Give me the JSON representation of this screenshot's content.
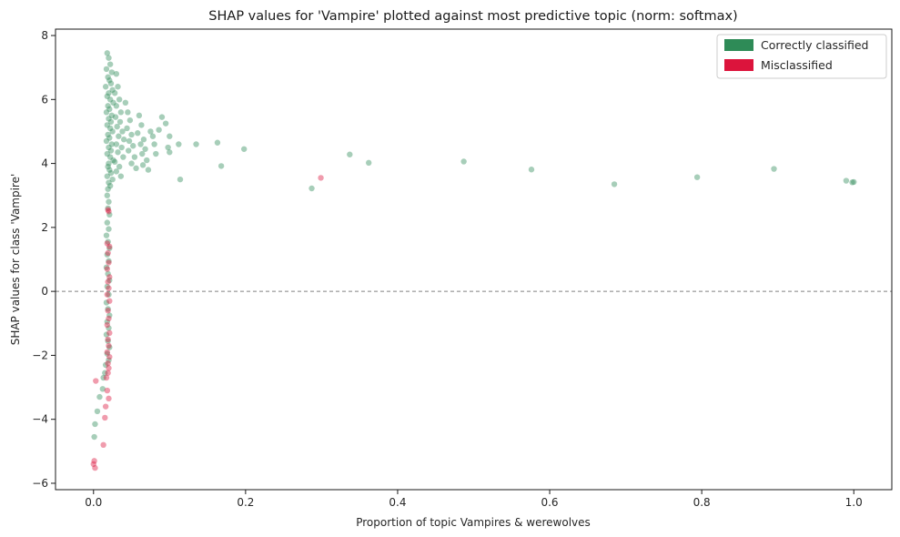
{
  "chart_data": {
    "type": "scatter",
    "title": "SHAP values for 'Vampire' plotted against most predictive topic (norm: softmax)",
    "xlabel": "Proportion of topic Vampires & werewolves",
    "ylabel": "SHAP values for class 'Vampire'",
    "xlim": [
      -0.05,
      1.05
    ],
    "ylim": [
      -6.2,
      8.2
    ],
    "xticks": [
      0.0,
      0.2,
      0.4,
      0.6,
      0.8,
      1.0
    ],
    "xtick_labels": [
      "0.0",
      "0.2",
      "0.4",
      "0.6",
      "0.8",
      "1.0"
    ],
    "yticks": [
      -6,
      -4,
      -2,
      0,
      2,
      4,
      6,
      8
    ],
    "ytick_labels": [
      "−6",
      "−4",
      "−2",
      "0",
      "2",
      "4",
      "6",
      "8"
    ],
    "reference_line": {
      "y": 0,
      "style": "dashed",
      "color": "#808080"
    },
    "grid": false,
    "legend_position": "top-right",
    "series": [
      {
        "name": "Correctly classified",
        "color": "#2e8b57",
        "points": [
          [
            0.018,
            7.45
          ],
          [
            0.02,
            7.3
          ],
          [
            0.022,
            7.1
          ],
          [
            0.017,
            6.95
          ],
          [
            0.024,
            6.85
          ],
          [
            0.019,
            6.7
          ],
          [
            0.021,
            6.6
          ],
          [
            0.023,
            6.5
          ],
          [
            0.016,
            6.4
          ],
          [
            0.025,
            6.3
          ],
          [
            0.02,
            6.2
          ],
          [
            0.018,
            6.1
          ],
          [
            0.022,
            6.0
          ],
          [
            0.026,
            5.9
          ],
          [
            0.019,
            5.8
          ],
          [
            0.021,
            5.7
          ],
          [
            0.017,
            5.6
          ],
          [
            0.024,
            5.5
          ],
          [
            0.02,
            5.4
          ],
          [
            0.023,
            5.3
          ],
          [
            0.018,
            5.2
          ],
          [
            0.022,
            5.1
          ],
          [
            0.025,
            5.0
          ],
          [
            0.019,
            4.9
          ],
          [
            0.021,
            4.8
          ],
          [
            0.017,
            4.7
          ],
          [
            0.024,
            4.6
          ],
          [
            0.02,
            4.5
          ],
          [
            0.023,
            4.4
          ],
          [
            0.018,
            4.3
          ],
          [
            0.022,
            4.2
          ],
          [
            0.026,
            4.1
          ],
          [
            0.02,
            4.0
          ],
          [
            0.019,
            3.9
          ],
          [
            0.021,
            3.8
          ],
          [
            0.023,
            3.7
          ],
          [
            0.018,
            3.6
          ],
          [
            0.025,
            3.5
          ],
          [
            0.02,
            3.4
          ],
          [
            0.022,
            3.3
          ],
          [
            0.019,
            3.2
          ],
          [
            0.03,
            6.8
          ],
          [
            0.032,
            6.4
          ],
          [
            0.028,
            6.2
          ],
          [
            0.034,
            6.0
          ],
          [
            0.03,
            5.8
          ],
          [
            0.036,
            5.6
          ],
          [
            0.029,
            5.45
          ],
          [
            0.035,
            5.3
          ],
          [
            0.031,
            5.15
          ],
          [
            0.038,
            5.0
          ],
          [
            0.033,
            4.85
          ],
          [
            0.04,
            4.75
          ],
          [
            0.03,
            4.6
          ],
          [
            0.037,
            4.5
          ],
          [
            0.032,
            4.35
          ],
          [
            0.039,
            4.2
          ],
          [
            0.028,
            4.05
          ],
          [
            0.034,
            3.9
          ],
          [
            0.03,
            3.75
          ],
          [
            0.036,
            3.6
          ],
          [
            0.042,
            5.9
          ],
          [
            0.045,
            5.6
          ],
          [
            0.048,
            5.35
          ],
          [
            0.044,
            5.1
          ],
          [
            0.05,
            4.9
          ],
          [
            0.047,
            4.7
          ],
          [
            0.052,
            4.55
          ],
          [
            0.046,
            4.4
          ],
          [
            0.054,
            4.2
          ],
          [
            0.05,
            4.0
          ],
          [
            0.056,
            3.85
          ],
          [
            0.06,
            5.5
          ],
          [
            0.063,
            5.2
          ],
          [
            0.058,
            4.95
          ],
          [
            0.066,
            4.75
          ],
          [
            0.062,
            4.6
          ],
          [
            0.068,
            4.45
          ],
          [
            0.064,
            4.3
          ],
          [
            0.07,
            4.1
          ],
          [
            0.065,
            3.95
          ],
          [
            0.072,
            3.8
          ],
          [
            0.075,
            5.0
          ],
          [
            0.078,
            4.85
          ],
          [
            0.08,
            4.6
          ],
          [
            0.082,
            4.3
          ],
          [
            0.086,
            5.05
          ],
          [
            0.09,
            5.45
          ],
          [
            0.095,
            5.25
          ],
          [
            0.1,
            4.85
          ],
          [
            0.098,
            4.5
          ],
          [
            0.1,
            4.35
          ],
          [
            0.112,
            4.6
          ],
          [
            0.114,
            3.5
          ],
          [
            0.135,
            4.6
          ],
          [
            0.163,
            4.65
          ],
          [
            0.168,
            3.92
          ],
          [
            0.198,
            4.45
          ],
          [
            0.287,
            3.22
          ],
          [
            0.337,
            4.28
          ],
          [
            0.362,
            4.02
          ],
          [
            0.487,
            4.06
          ],
          [
            0.576,
            3.81
          ],
          [
            0.685,
            3.35
          ],
          [
            0.794,
            3.57
          ],
          [
            0.895,
            3.83
          ],
          [
            0.99,
            3.46
          ],
          [
            1.0,
            3.42
          ],
          [
            0.998,
            3.41
          ],
          [
            0.018,
            3.0
          ],
          [
            0.02,
            2.8
          ],
          [
            0.019,
            2.6
          ],
          [
            0.021,
            2.4
          ],
          [
            0.018,
            2.15
          ],
          [
            0.02,
            1.95
          ],
          [
            0.017,
            1.75
          ],
          [
            0.019,
            1.55
          ],
          [
            0.021,
            1.35
          ],
          [
            0.018,
            1.15
          ],
          [
            0.02,
            0.95
          ],
          [
            0.017,
            0.75
          ],
          [
            0.019,
            0.55
          ],
          [
            0.021,
            0.35
          ],
          [
            0.018,
            0.15
          ],
          [
            0.02,
            -0.1
          ],
          [
            0.017,
            -0.35
          ],
          [
            0.019,
            -0.55
          ],
          [
            0.021,
            -0.75
          ],
          [
            0.018,
            -0.95
          ],
          [
            0.02,
            -1.15
          ],
          [
            0.017,
            -1.35
          ],
          [
            0.019,
            -1.55
          ],
          [
            0.021,
            -1.75
          ],
          [
            0.018,
            -1.95
          ],
          [
            0.02,
            -2.15
          ],
          [
            0.016,
            -2.3
          ],
          [
            0.015,
            -2.55
          ],
          [
            0.013,
            -2.7
          ],
          [
            0.012,
            -3.05
          ],
          [
            0.008,
            -3.3
          ],
          [
            0.005,
            -3.75
          ],
          [
            0.002,
            -4.15
          ],
          [
            0.001,
            -4.55
          ]
        ]
      },
      {
        "name": "Misclassified",
        "color": "#dc143c",
        "points": [
          [
            0.019,
            2.55
          ],
          [
            0.02,
            2.5
          ],
          [
            0.018,
            1.5
          ],
          [
            0.021,
            1.4
          ],
          [
            0.019,
            1.2
          ],
          [
            0.02,
            0.9
          ],
          [
            0.018,
            0.7
          ],
          [
            0.021,
            0.45
          ],
          [
            0.019,
            0.3
          ],
          [
            0.02,
            0.1
          ],
          [
            0.018,
            -0.1
          ],
          [
            0.021,
            -0.3
          ],
          [
            0.019,
            -0.6
          ],
          [
            0.02,
            -0.85
          ],
          [
            0.018,
            -1.05
          ],
          [
            0.021,
            -1.3
          ],
          [
            0.019,
            -1.5
          ],
          [
            0.02,
            -1.7
          ],
          [
            0.018,
            -1.9
          ],
          [
            0.021,
            -2.05
          ],
          [
            0.019,
            -2.25
          ],
          [
            0.02,
            -2.4
          ],
          [
            0.017,
            -2.7
          ],
          [
            0.019,
            -2.55
          ],
          [
            0.018,
            -3.1
          ],
          [
            0.02,
            -3.35
          ],
          [
            0.016,
            -3.6
          ],
          [
            0.015,
            -3.95
          ],
          [
            0.013,
            -4.8
          ],
          [
            0.003,
            -2.8
          ],
          [
            0.001,
            -5.3
          ],
          [
            0.0,
            -5.4
          ],
          [
            0.002,
            -5.52
          ],
          [
            0.299,
            3.55
          ]
        ]
      }
    ]
  }
}
